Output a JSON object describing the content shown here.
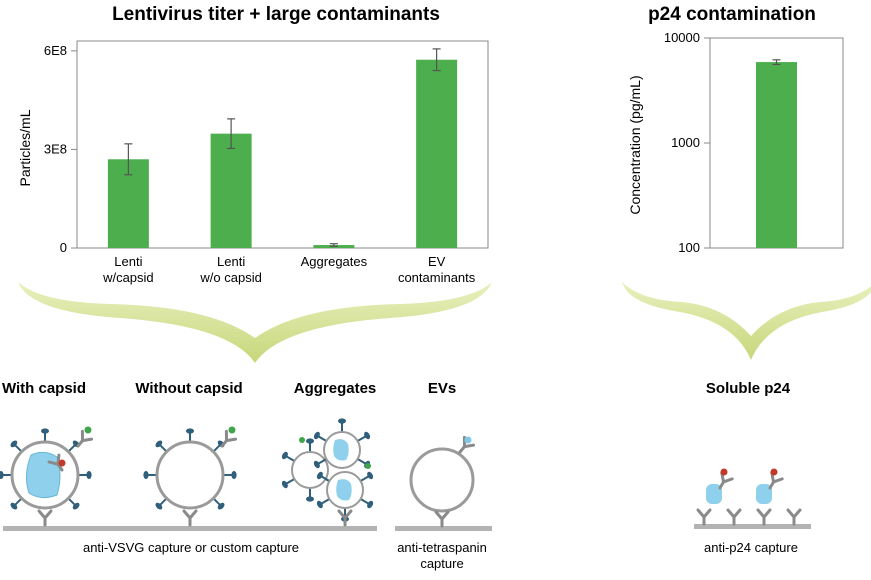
{
  "chart_data": [
    {
      "type": "bar",
      "title": "Lentivirus titer + large contaminants",
      "ylabel": "Particles/mL",
      "xlabel": "",
      "categories": [
        [
          "Lenti",
          "w/capsid"
        ],
        [
          "Lenti",
          "w/o capsid"
        ],
        [
          "Aggregates"
        ],
        [
          "EV",
          "contaminants"
        ]
      ],
      "values": [
        270000000,
        348000000,
        9000000,
        573000000
      ],
      "errors": [
        47000000,
        45000000,
        4000000,
        33000000
      ],
      "ylim": [
        0,
        630000000
      ],
      "yticks": [
        0,
        300000000,
        600000000
      ],
      "ytick_labels": [
        "0",
        "3E8",
        "6E8"
      ],
      "grid": false,
      "bar_color": "#4cae4c"
    },
    {
      "type": "bar",
      "title": "p24 contamination",
      "ylabel": "Concentration (pg/mL)",
      "xlabel": "",
      "scale": "log",
      "categories": [
        [
          ""
        ]
      ],
      "values": [
        5900
      ],
      "errors": [
        300
      ],
      "ylim": [
        100,
        10000
      ],
      "yticks": [
        100,
        1000,
        10000
      ],
      "ytick_labels": [
        "100",
        "1000",
        "10000"
      ],
      "grid": false,
      "bar_color": "#4cae4c"
    }
  ],
  "diagram": {
    "labels": {
      "with_capsid": "With capsid",
      "without_capsid": "Without capsid",
      "aggregates": "Aggregates",
      "evs": "EVs",
      "soluble_p24": "Soluble p24"
    },
    "captions": {
      "vsvg": "anti-VSVG capture or custom capture",
      "tetraspanin_1": "anti-tetraspanin",
      "tetraspanin_2": "capture",
      "p24": "anti-p24 capture"
    }
  }
}
